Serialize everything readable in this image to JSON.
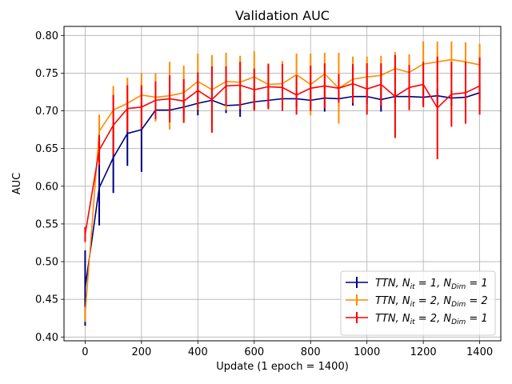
{
  "chart_data": {
    "type": "line",
    "title": "Validation AUC",
    "xlabel": "Update (1 epoch = 1400)",
    "ylabel": "AUC",
    "xlim": [
      -75,
      1475
    ],
    "ylim": [
      0.395,
      0.812
    ],
    "xticks": [
      0,
      200,
      400,
      600,
      800,
      1000,
      1200,
      1400
    ],
    "yticks": [
      0.4,
      0.45,
      0.5,
      0.55,
      0.6,
      0.65,
      0.7,
      0.75,
      0.8
    ],
    "ytick_labels": [
      "0.40",
      "0.45",
      "0.50",
      "0.55",
      "0.60",
      "0.65",
      "0.70",
      "0.75",
      "0.80"
    ],
    "grid": true,
    "legend_position": "lower-right",
    "x": [
      0,
      50,
      100,
      150,
      200,
      250,
      300,
      350,
      400,
      450,
      500,
      550,
      600,
      650,
      700,
      750,
      800,
      850,
      900,
      950,
      1000,
      1050,
      1100,
      1150,
      1200,
      1250,
      1300,
      1350,
      1400
    ],
    "series": [
      {
        "name": "TTN, N_it=1, N_Dim=1",
        "legend_parts": [
          "TTN, N",
          "it",
          " = 1, N",
          "Dim",
          " = 1"
        ],
        "color": "#00007f",
        "values": [
          0.465,
          0.598,
          0.638,
          0.67,
          0.675,
          0.701,
          0.701,
          0.705,
          0.71,
          0.714,
          0.707,
          0.708,
          0.712,
          0.714,
          0.716,
          0.716,
          0.714,
          0.717,
          0.716,
          0.719,
          0.719,
          0.715,
          0.719,
          0.719,
          0.718,
          0.72,
          0.717,
          0.718,
          0.724
        ],
        "errors": [
          0.05,
          0.05,
          0.047,
          0.043,
          0.056,
          0.01,
          0.01,
          0.01,
          0.016,
          0.01,
          0.01,
          0.016,
          0.01,
          0.01,
          0.01,
          0.01,
          0.01,
          0.018,
          0.01,
          0.012,
          0.01,
          0.016,
          0.01,
          0.01,
          0.01,
          0.01,
          0.01,
          0.01,
          0.01
        ]
      },
      {
        "name": "TTN, N_it=2, N_Dim=2",
        "legend_parts": [
          "TTN, N",
          "it",
          " = 2, N",
          "Dim",
          " = 2"
        ],
        "color": "#ff8c00",
        "values": [
          0.43,
          0.673,
          0.701,
          0.71,
          0.721,
          0.718,
          0.72,
          0.724,
          0.739,
          0.728,
          0.739,
          0.738,
          0.745,
          0.735,
          0.736,
          0.748,
          0.735,
          0.749,
          0.73,
          0.742,
          0.745,
          0.747,
          0.756,
          0.751,
          0.762,
          0.765,
          0.768,
          0.765,
          0.761
        ],
        "errors": [
          0.01,
          0.022,
          0.032,
          0.034,
          0.029,
          0.032,
          0.045,
          0.036,
          0.037,
          0.046,
          0.038,
          0.035,
          0.034,
          0.028,
          0.03,
          0.028,
          0.041,
          0.028,
          0.047,
          0.03,
          0.027,
          0.026,
          0.022,
          0.024,
          0.03,
          0.027,
          0.024,
          0.026,
          0.028
        ]
      },
      {
        "name": "TTN, N_it=2, N_Dim=1",
        "legend_parts": [
          "TTN, N",
          "it",
          " = 2, N",
          "Dim",
          " = 1"
        ],
        "color": "#ff0000",
        "values": [
          0.536,
          0.648,
          0.681,
          0.703,
          0.705,
          0.714,
          0.716,
          0.713,
          0.727,
          0.715,
          0.733,
          0.734,
          0.728,
          0.732,
          0.731,
          0.721,
          0.73,
          0.733,
          0.73,
          0.736,
          0.729,
          0.735,
          0.719,
          0.731,
          0.735,
          0.704,
          0.722,
          0.724,
          0.733
        ],
        "errors": [
          0.01,
          0.02,
          0.04,
          0.031,
          0.029,
          0.025,
          0.031,
          0.029,
          0.024,
          0.044,
          0.026,
          0.031,
          0.028,
          0.03,
          0.031,
          0.026,
          0.03,
          0.03,
          0.019,
          0.026,
          0.034,
          0.028,
          0.055,
          0.03,
          0.03,
          0.068,
          0.043,
          0.041,
          0.038
        ]
      }
    ]
  }
}
